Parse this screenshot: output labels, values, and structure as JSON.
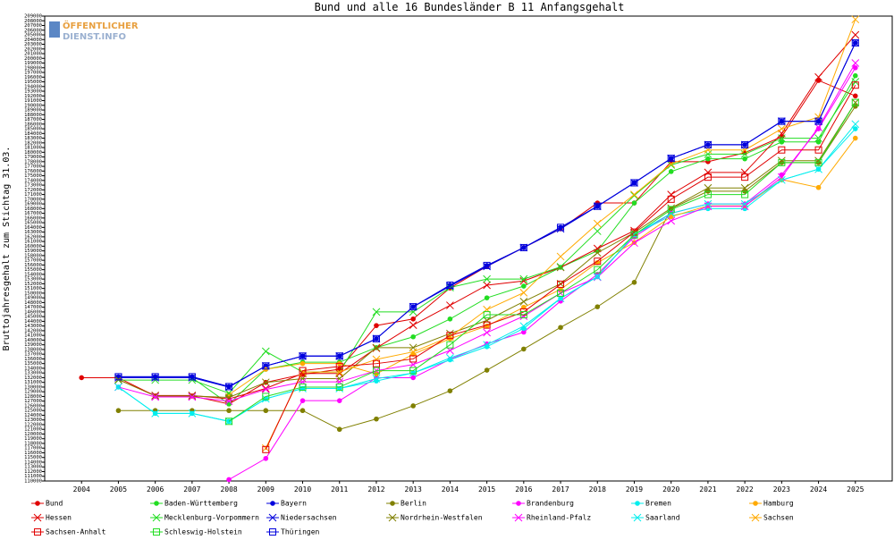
{
  "chart_data": {
    "type": "line",
    "title": "Bund und alle 16 Bundesländer B 11 Anfangsgehalt",
    "y_label": "Bruttojahresgehalt zum Stichtag 31.03.",
    "watermark": [
      "ÖFFENTLICHER",
      "DIENST.INFO"
    ],
    "x": [
      2004,
      2005,
      2006,
      2007,
      2008,
      2009,
      2010,
      2011,
      2012,
      2013,
      2014,
      2015,
      2016,
      2017,
      2018,
      2019,
      2020,
      2021,
      2022,
      2023,
      2024,
      2025
    ],
    "xlim": [
      2003,
      2026
    ],
    "xticks": [
      2004,
      2005,
      2006,
      2007,
      2008,
      2009,
      2010,
      2011,
      2012,
      2013,
      2014,
      2015,
      2016,
      2017,
      2018,
      2019,
      2020,
      2021,
      2022,
      2023,
      2024,
      2025
    ],
    "ylim": [
      110000,
      209000
    ],
    "yticks": [
      110000,
      111000,
      112000,
      113000,
      114000,
      115000,
      116000,
      117000,
      118000,
      119000,
      120000,
      121000,
      122000,
      123000,
      124000,
      125000,
      126000,
      127000,
      128000,
      129000,
      130000,
      131000,
      132000,
      133000,
      134000,
      135000,
      136000,
      137000,
      138000,
      139000,
      140000,
      141000,
      142000,
      143000,
      144000,
      145000,
      146000,
      147000,
      148000,
      149000,
      150000,
      151000,
      152000,
      153000,
      154000,
      155000,
      156000,
      157000,
      158000,
      159000,
      160000,
      161000,
      162000,
      163000,
      164000,
      165000,
      166000,
      167000,
      168000,
      169000,
      170000,
      171000,
      172000,
      173000,
      174000,
      175000,
      176000,
      177000,
      178000,
      179000,
      180000,
      181000,
      182000,
      183000,
      184000,
      185000,
      186000,
      187000,
      188000,
      189000,
      190000,
      191000,
      192000,
      193000,
      194000,
      195000,
      196000,
      197000,
      198000,
      199000,
      200000,
      201000,
      202000,
      203000,
      204000,
      205000,
      206000,
      207000,
      208000,
      209000
    ],
    "grid": false,
    "legend": "bottom",
    "series": [
      {
        "name": "Bund",
        "color": "#e00000",
        "marker": "dot",
        "values": [
          132000,
          132000,
          128100,
          128100,
          126400,
          131000,
          132700,
          133800,
          143100,
          144500,
          151100,
          155700,
          159700,
          163700,
          169200,
          169200,
          178000,
          178000,
          179900,
          183300,
          195300,
          192000
        ]
      },
      {
        "name": "Baden-Württemberg",
        "color": "#22dd22",
        "marker": "dot",
        "values": [
          null,
          132000,
          132000,
          132000,
          126400,
          133800,
          135300,
          135300,
          138400,
          140700,
          144500,
          149000,
          151500,
          155500,
          159000,
          169200,
          175900,
          178600,
          178600,
          182200,
          182200,
          196300
        ]
      },
      {
        "name": "Bayern",
        "color": "#0000dd",
        "marker": "dot",
        "values": [
          null,
          132200,
          132200,
          132200,
          130100,
          134500,
          136600,
          136600,
          140300,
          147100,
          151700,
          155900,
          159700,
          164000,
          168500,
          173500,
          178700,
          181600,
          181600,
          186600,
          186600,
          203300
        ]
      },
      {
        "name": "Berlin",
        "color": "#808000",
        "marker": "dot",
        "values": [
          null,
          125000,
          125000,
          125000,
          125000,
          125000,
          125000,
          121000,
          123200,
          126000,
          129200,
          133600,
          138100,
          142700,
          147100,
          152300,
          168000,
          171700,
          171700,
          177800,
          177800,
          189800
        ]
      },
      {
        "name": "Brandenburg",
        "color": "#ff00ff",
        "marker": "dot",
        "values": [
          null,
          null,
          null,
          null,
          110300,
          114800,
          127100,
          127100,
          132000,
          132000,
          135900,
          139200,
          141700,
          148300,
          154000,
          162000,
          167000,
          169000,
          169000,
          175200,
          185000,
          198000
        ]
      },
      {
        "name": "Bremen",
        "color": "#00eeee",
        "marker": "dot",
        "values": [
          null,
          130000,
          124400,
          124400,
          122700,
          127500,
          129700,
          129700,
          131300,
          133000,
          135800,
          138600,
          142500,
          148900,
          153500,
          162500,
          166500,
          168000,
          168000,
          174100,
          176400,
          185000
        ]
      },
      {
        "name": "Hamburg",
        "color": "#ffaa00",
        "marker": "dot",
        "values": [
          null,
          null,
          null,
          null,
          128400,
          133800,
          135000,
          135000,
          132800,
          137000,
          140300,
          143000,
          147000,
          150800,
          156500,
          160800,
          166300,
          168600,
          168600,
          174200,
          172500,
          183000
        ]
      },
      {
        "name": "Hessen",
        "color": "#e00000",
        "marker": "cross",
        "values": [
          null,
          131600,
          128200,
          128200,
          127500,
          129700,
          132900,
          132900,
          138300,
          143200,
          147400,
          151700,
          152600,
          155500,
          159500,
          163300,
          171000,
          175700,
          175700,
          184000,
          196000,
          205000
        ]
      },
      {
        "name": "Mecklenburg-Vorpommern",
        "color": "#22dd22",
        "marker": "cross",
        "values": [
          null,
          131500,
          131500,
          131500,
          128700,
          137600,
          133200,
          133200,
          146000,
          146000,
          151200,
          153000,
          153000,
          155600,
          163200,
          170800,
          177300,
          179600,
          179600,
          183000,
          183000,
          195000
        ]
      },
      {
        "name": "Niedersachsen",
        "color": "#0000dd",
        "marker": "cross",
        "values": [
          null,
          132000,
          132000,
          132000,
          130000,
          134500,
          136600,
          136600,
          140300,
          147100,
          151500,
          155700,
          159700,
          163700,
          168500,
          173500,
          178700,
          181600,
          181600,
          186600,
          186600,
          203300
        ]
      },
      {
        "name": "Nordrhein-Westfalen",
        "color": "#808000",
        "marker": "cross",
        "values": [
          null,
          131600,
          128100,
          128100,
          127800,
          131000,
          131800,
          131800,
          138400,
          138400,
          141400,
          144200,
          148200,
          152000,
          158600,
          162900,
          168100,
          172400,
          172400,
          178200,
          178200,
          190600
        ]
      },
      {
        "name": "Rheinland-Pfalz",
        "color": "#ff00ff",
        "marker": "cross",
        "values": [
          null,
          130000,
          127900,
          127900,
          127000,
          129500,
          131100,
          131100,
          133500,
          134800,
          137800,
          141600,
          145100,
          150000,
          153400,
          160700,
          165400,
          168500,
          168500,
          174700,
          185300,
          199000
        ]
      },
      {
        "name": "Saarland",
        "color": "#00eeee",
        "marker": "cross",
        "values": [
          null,
          130000,
          124400,
          124400,
          122700,
          127500,
          129700,
          129700,
          131800,
          133000,
          136200,
          139000,
          143000,
          148900,
          153500,
          162500,
          167000,
          169000,
          169000,
          174100,
          176400,
          186000
        ]
      },
      {
        "name": "Sachsen",
        "color": "#ffaa00",
        "marker": "cross",
        "values": [
          null,
          null,
          null,
          null,
          null,
          117000,
          133200,
          133200,
          135900,
          137500,
          140700,
          146500,
          150100,
          157800,
          164800,
          171000,
          177500,
          180500,
          180500,
          185000,
          187500,
          208300
        ]
      },
      {
        "name": "Sachsen-Anhalt",
        "color": "#e00000",
        "marker": "square",
        "values": [
          null,
          null,
          null,
          null,
          null,
          116700,
          133500,
          134400,
          135000,
          136000,
          141000,
          143200,
          146000,
          151900,
          156800,
          163000,
          170000,
          174700,
          174700,
          180500,
          180500,
          194300
        ]
      },
      {
        "name": "Schleswig-Holstein",
        "color": "#22dd22",
        "marker": "square",
        "values": [
          null,
          null,
          null,
          null,
          122700,
          128000,
          130000,
          130000,
          133500,
          133500,
          139000,
          145400,
          145400,
          150000,
          155000,
          162400,
          167800,
          171000,
          171000,
          177800,
          177800,
          190600
        ]
      },
      {
        "name": "Thüringen",
        "color": "#0000dd",
        "marker": "square",
        "values": [
          null,
          132200,
          132200,
          132200,
          130100,
          134500,
          136600,
          136600,
          140300,
          147100,
          151700,
          155900,
          159700,
          164000,
          168500,
          173500,
          178700,
          181600,
          181600,
          186600,
          186600,
          203300
        ]
      }
    ]
  }
}
